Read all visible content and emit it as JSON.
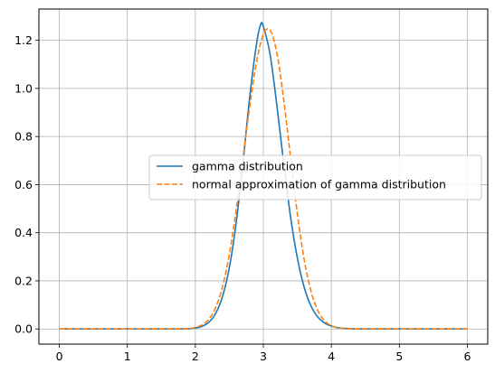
{
  "chart_data": {
    "type": "line",
    "title": "",
    "xlabel": "",
    "ylabel": "",
    "xlim": [
      -0.3,
      6.3
    ],
    "ylim": [
      -0.063,
      1.33
    ],
    "xticks": [
      0,
      1,
      2,
      3,
      4,
      5,
      6
    ],
    "yticks": [
      0.0,
      0.2,
      0.4,
      0.6,
      0.8,
      1.0,
      1.2
    ],
    "xtick_labels": [
      "0",
      "1",
      "2",
      "3",
      "4",
      "5",
      "6"
    ],
    "ytick_labels": [
      "0.0",
      "0.2",
      "0.4",
      "0.6",
      "0.8",
      "1.0",
      "1.2"
    ],
    "grid": true,
    "legend_position": "center-right",
    "series": [
      {
        "name": "gamma distribution",
        "color": "#1f77b4",
        "style": "solid",
        "x": [
          0,
          1.0,
          1.8,
          2.0,
          2.1,
          2.2,
          2.3,
          2.4,
          2.5,
          2.6,
          2.7,
          2.8,
          2.9,
          2.96,
          3.0,
          3.1,
          3.2,
          3.3,
          3.4,
          3.5,
          3.6,
          3.7,
          3.8,
          3.9,
          4.0,
          4.1,
          4.2,
          4.4,
          4.6,
          5.0,
          6.0
        ],
        "y": [
          0.0,
          0.0,
          0.0,
          0.004,
          0.011,
          0.028,
          0.065,
          0.135,
          0.255,
          0.44,
          0.689,
          0.965,
          1.185,
          1.265,
          1.258,
          1.14,
          0.927,
          0.688,
          0.467,
          0.295,
          0.174,
          0.096,
          0.05,
          0.025,
          0.012,
          0.005,
          0.002,
          0.0,
          0.0,
          0.0,
          0.0
        ]
      },
      {
        "name": "normal approximation of gamma distribution",
        "color": "#ff7f0e",
        "style": "dashed",
        "x": [
          0,
          1.0,
          1.7,
          1.9,
          2.0,
          2.1,
          2.2,
          2.3,
          2.4,
          2.5,
          2.6,
          2.7,
          2.8,
          2.9,
          3.0,
          3.1,
          3.2,
          3.3,
          3.4,
          3.5,
          3.6,
          3.7,
          3.8,
          3.9,
          4.0,
          4.1,
          4.2,
          4.4,
          5.0,
          6.0
        ],
        "y": [
          0.0,
          0.0,
          0.0,
          0.002,
          0.006,
          0.017,
          0.041,
          0.09,
          0.176,
          0.31,
          0.494,
          0.71,
          0.925,
          1.11,
          1.224,
          1.242,
          1.145,
          0.952,
          0.713,
          0.479,
          0.29,
          0.158,
          0.077,
          0.034,
          0.013,
          0.005,
          0.0016,
          0.0,
          0.0,
          0.0
        ]
      }
    ]
  }
}
